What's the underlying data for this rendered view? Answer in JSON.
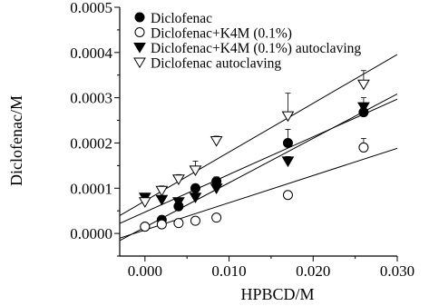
{
  "chart_data": {
    "type": "scatter",
    "title": "",
    "xlabel": "HPBCD/M",
    "ylabel": "Diclofenac/M",
    "xlim": [
      -0.003,
      0.03
    ],
    "ylim": [
      -5e-05,
      0.0005
    ],
    "x_ticks": [
      "0.000",
      "0.010",
      "0.020",
      "0.030"
    ],
    "y_ticks": [
      "0.0000",
      "0.0001",
      "0.0002",
      "0.0003",
      "0.0004",
      "0.0005"
    ],
    "legend_position": "top-left",
    "series": [
      {
        "name": "Diclofenac",
        "marker": "filled-circle",
        "x": [
          0.0,
          0.002,
          0.004,
          0.006,
          0.0085,
          0.017,
          0.026
        ],
        "y": [
          1.5e-05,
          3e-05,
          6e-05,
          0.0001,
          0.000115,
          0.0002,
          0.000268
        ],
        "err": [
          5e-06,
          5e-06,
          8e-06,
          8e-06,
          1e-05,
          3e-05,
          1e-05
        ],
        "fit": [
          1.38e-05,
          0.00982
        ]
      },
      {
        "name": "Diclofenac+K4M (0.1%)",
        "marker": "open-circle",
        "x": [
          0.0,
          0.002,
          0.004,
          0.006,
          0.0085,
          0.017,
          0.026
        ],
        "y": [
          1.5e-05,
          2e-05,
          2.3e-05,
          2.8e-05,
          3.5e-05,
          8.5e-05,
          0.00019
        ],
        "err": [
          5e-06,
          3e-06,
          3e-06,
          3e-06,
          4e-06,
          8e-06,
          2e-05
        ],
        "fit": [
          7.57e-06,
          0.00602
        ]
      },
      {
        "name": "Diclofenac+K4M (0.1%) autoclaving",
        "marker": "filled-triangle-down",
        "x": [
          0.0,
          0.002,
          0.004,
          0.006,
          0.0085,
          0.017,
          0.026
        ],
        "y": [
          8e-05,
          7.5e-05,
          7e-05,
          8e-05,
          0.0001,
          0.00016,
          0.00028
        ],
        "err": [
          8e-06,
          8e-06,
          8e-06,
          8e-06,
          1e-05,
          1e-05,
          2e-05
        ],
        "fit": [
          4.72e-05,
          0.00832
        ]
      },
      {
        "name": "Diclofenac autoclaving",
        "marker": "open-triangle-down",
        "x": [
          0.0,
          0.002,
          0.004,
          0.006,
          0.0085,
          0.017,
          0.026
        ],
        "y": [
          7e-05,
          9.5e-05,
          0.00012,
          0.00014,
          0.000205,
          0.00026,
          0.00033
        ],
        "err": [
          1e-05,
          1e-05,
          1e-05,
          2e-05,
          1e-05,
          5e-05,
          3e-05
        ],
        "fit": [
          7.19e-05,
          0.01079
        ]
      }
    ]
  }
}
